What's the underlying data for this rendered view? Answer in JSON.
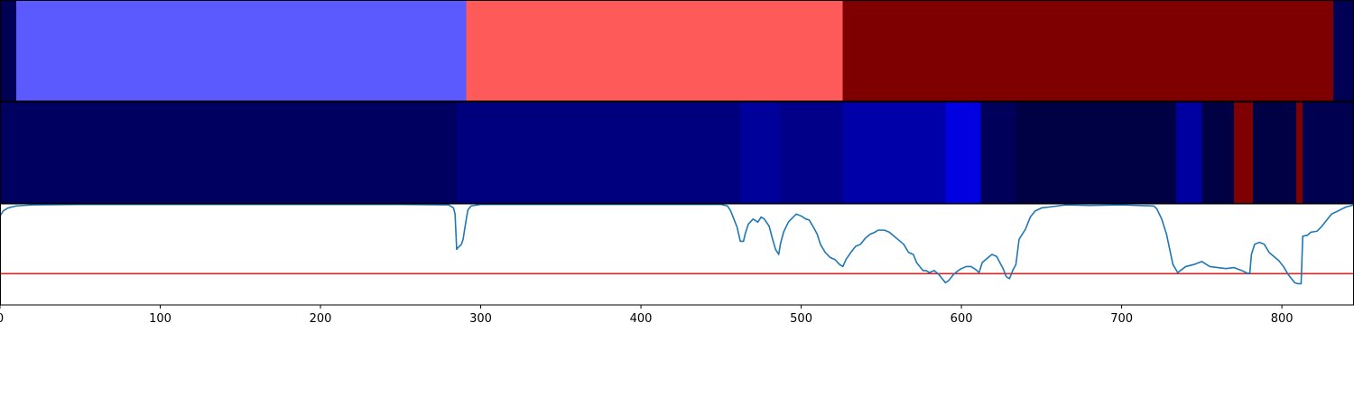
{
  "chart_data": [
    {
      "type": "heatmap",
      "xlim": [
        0,
        845
      ],
      "segments": [
        {
          "start": 0,
          "end": 10,
          "color": "#000055"
        },
        {
          "start": 10,
          "end": 291,
          "color": "#5a5aff"
        },
        {
          "start": 291,
          "end": 526,
          "color": "#ff5a5a"
        },
        {
          "start": 526,
          "end": 832,
          "color": "#7f0000"
        },
        {
          "start": 832,
          "end": 845,
          "color": "#000055"
        }
      ]
    },
    {
      "type": "heatmap",
      "xlim": [
        0,
        845
      ],
      "segments": [
        {
          "start": 0,
          "end": 285,
          "color": "#000060"
        },
        {
          "start": 285,
          "end": 462,
          "color": "#00007f"
        },
        {
          "start": 462,
          "end": 487,
          "color": "#00009a"
        },
        {
          "start": 487,
          "end": 526,
          "color": "#000088"
        },
        {
          "start": 526,
          "end": 590,
          "color": "#0000a8"
        },
        {
          "start": 590,
          "end": 612,
          "color": "#0000e0"
        },
        {
          "start": 612,
          "end": 634,
          "color": "#00005a"
        },
        {
          "start": 634,
          "end": 734,
          "color": "#000045"
        },
        {
          "start": 734,
          "end": 750,
          "color": "#0000a0"
        },
        {
          "start": 750,
          "end": 770,
          "color": "#000045"
        },
        {
          "start": 770,
          "end": 782,
          "color": "#7f0000"
        },
        {
          "start": 782,
          "end": 809,
          "color": "#000045"
        },
        {
          "start": 809,
          "end": 813,
          "color": "#7f0000"
        },
        {
          "start": 813,
          "end": 845,
          "color": "#000050"
        }
      ]
    },
    {
      "type": "line",
      "xlim": [
        0,
        845
      ],
      "ylim": [
        0,
        1
      ],
      "line_color": "#1f77b4",
      "threshold_color": "#d62728",
      "threshold": 0.31,
      "xticks": [
        {
          "value": 0,
          "label": "0"
        },
        {
          "value": 100,
          "label": "100"
        },
        {
          "value": 200,
          "label": "200"
        },
        {
          "value": 300,
          "label": "300"
        },
        {
          "value": 400,
          "label": "400"
        },
        {
          "value": 500,
          "label": "500"
        },
        {
          "value": 600,
          "label": "600"
        },
        {
          "value": 700,
          "label": "700"
        },
        {
          "value": 800,
          "label": "800"
        }
      ],
      "points": [
        [
          0,
          0.88
        ],
        [
          2,
          0.93
        ],
        [
          5,
          0.96
        ],
        [
          10,
          0.98
        ],
        [
          20,
          0.99
        ],
        [
          50,
          0.995
        ],
        [
          150,
          0.995
        ],
        [
          250,
          0.995
        ],
        [
          280,
          0.99
        ],
        [
          283,
          0.96
        ],
        [
          284,
          0.9
        ],
        [
          285,
          0.55
        ],
        [
          286,
          0.57
        ],
        [
          288,
          0.6
        ],
        [
          289,
          0.65
        ],
        [
          290,
          0.75
        ],
        [
          291,
          0.85
        ],
        [
          292,
          0.94
        ],
        [
          294,
          0.98
        ],
        [
          300,
          0.995
        ],
        [
          400,
          0.995
        ],
        [
          450,
          0.995
        ],
        [
          454,
          0.98
        ],
        [
          456,
          0.93
        ],
        [
          458,
          0.85
        ],
        [
          460,
          0.77
        ],
        [
          462,
          0.63
        ],
        [
          464,
          0.63
        ],
        [
          465,
          0.7
        ],
        [
          467,
          0.8
        ],
        [
          470,
          0.85
        ],
        [
          473,
          0.82
        ],
        [
          475,
          0.87
        ],
        [
          477,
          0.85
        ],
        [
          480,
          0.78
        ],
        [
          482,
          0.66
        ],
        [
          484,
          0.55
        ],
        [
          486,
          0.5
        ],
        [
          487,
          0.6
        ],
        [
          489,
          0.72
        ],
        [
          492,
          0.82
        ],
        [
          495,
          0.87
        ],
        [
          497,
          0.9
        ],
        [
          500,
          0.88
        ],
        [
          503,
          0.85
        ],
        [
          505,
          0.84
        ],
        [
          508,
          0.76
        ],
        [
          510,
          0.7
        ],
        [
          512,
          0.6
        ],
        [
          515,
          0.52
        ],
        [
          518,
          0.47
        ],
        [
          521,
          0.45
        ],
        [
          524,
          0.4
        ],
        [
          526,
          0.38
        ],
        [
          528,
          0.45
        ],
        [
          531,
          0.52
        ],
        [
          534,
          0.58
        ],
        [
          537,
          0.6
        ],
        [
          540,
          0.66
        ],
        [
          543,
          0.7
        ],
        [
          546,
          0.72
        ],
        [
          548,
          0.74
        ],
        [
          552,
          0.74
        ],
        [
          555,
          0.72
        ],
        [
          558,
          0.68
        ],
        [
          561,
          0.64
        ],
        [
          564,
          0.6
        ],
        [
          567,
          0.52
        ],
        [
          570,
          0.5
        ],
        [
          572,
          0.42
        ],
        [
          574,
          0.38
        ],
        [
          576,
          0.34
        ],
        [
          578,
          0.34
        ],
        [
          580,
          0.32
        ],
        [
          583,
          0.34
        ],
        [
          586,
          0.3
        ],
        [
          588,
          0.26
        ],
        [
          590,
          0.22
        ],
        [
          592,
          0.24
        ],
        [
          595,
          0.3
        ],
        [
          598,
          0.34
        ],
        [
          600,
          0.36
        ],
        [
          603,
          0.38
        ],
        [
          606,
          0.38
        ],
        [
          609,
          0.35
        ],
        [
          611,
          0.32
        ],
        [
          613,
          0.42
        ],
        [
          616,
          0.46
        ],
        [
          619,
          0.5
        ],
        [
          622,
          0.48
        ],
        [
          624,
          0.42
        ],
        [
          626,
          0.36
        ],
        [
          628,
          0.28
        ],
        [
          630,
          0.26
        ],
        [
          632,
          0.34
        ],
        [
          634,
          0.4
        ],
        [
          636,
          0.65
        ],
        [
          640,
          0.75
        ],
        [
          643,
          0.87
        ],
        [
          646,
          0.93
        ],
        [
          650,
          0.96
        ],
        [
          655,
          0.97
        ],
        [
          665,
          0.99
        ],
        [
          680,
          0.985
        ],
        [
          700,
          0.99
        ],
        [
          720,
          0.98
        ],
        [
          722,
          0.95
        ],
        [
          725,
          0.85
        ],
        [
          728,
          0.7
        ],
        [
          730,
          0.55
        ],
        [
          732,
          0.4
        ],
        [
          735,
          0.32
        ],
        [
          740,
          0.38
        ],
        [
          745,
          0.4
        ],
        [
          750,
          0.43
        ],
        [
          752,
          0.41
        ],
        [
          755,
          0.38
        ],
        [
          760,
          0.37
        ],
        [
          765,
          0.36
        ],
        [
          770,
          0.37
        ],
        [
          775,
          0.34
        ],
        [
          779,
          0.31
        ],
        [
          780,
          0.32
        ],
        [
          781,
          0.5
        ],
        [
          783,
          0.6
        ],
        [
          786,
          0.62
        ],
        [
          789,
          0.6
        ],
        [
          792,
          0.52
        ],
        [
          795,
          0.48
        ],
        [
          798,
          0.44
        ],
        [
          801,
          0.38
        ],
        [
          804,
          0.3
        ],
        [
          806,
          0.26
        ],
        [
          808,
          0.22
        ],
        [
          810,
          0.21
        ],
        [
          812,
          0.21
        ],
        [
          813,
          0.68
        ],
        [
          816,
          0.69
        ],
        [
          818,
          0.72
        ],
        [
          822,
          0.73
        ],
        [
          825,
          0.78
        ],
        [
          828,
          0.84
        ],
        [
          831,
          0.9
        ],
        [
          835,
          0.93
        ],
        [
          840,
          0.97
        ],
        [
          845,
          0.99
        ]
      ]
    }
  ]
}
